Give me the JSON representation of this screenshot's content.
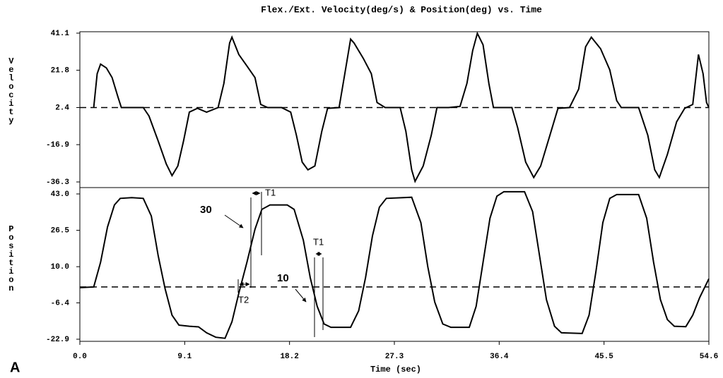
{
  "chart_data": [
    {
      "type": "line",
      "title": "Flex./Ext. Velocity(deg/s) & Position(deg) vs. Time",
      "ylabel": "Velocity",
      "color": "#000000",
      "x": [
        1.2,
        1.5,
        1.8,
        2.3,
        2.8,
        3.3,
        3.6,
        4.5,
        5.5,
        6.0,
        6.8,
        7.5,
        8.0,
        8.5,
        9.0,
        9.5,
        10.2,
        11.0,
        12.0,
        12.5,
        13.0,
        13.2,
        13.8,
        14.5,
        15.2,
        15.7,
        16.3,
        17.5,
        18.3,
        18.8,
        19.3,
        19.8,
        20.4,
        21.0,
        21.5,
        22.5,
        23.0,
        23.5,
        23.8,
        24.6,
        25.3,
        25.8,
        26.5,
        27.8,
        28.3,
        28.8,
        29.1,
        29.8,
        30.5,
        31.0,
        32.0,
        33.0,
        33.6,
        34.1,
        34.5,
        35.0,
        35.5,
        35.9,
        37.5,
        38.0,
        38.7,
        39.4,
        40.0,
        40.8,
        41.5,
        42.5,
        43.3,
        43.9,
        44.4,
        45.2,
        46.0,
        46.6,
        47.0,
        48.5,
        49.3,
        49.9,
        50.3,
        51.0,
        51.8,
        52.5,
        53.2,
        53.7,
        54.1,
        54.4,
        54.6
      ],
      "values": [
        2.4,
        20,
        25,
        23,
        18,
        8,
        2.4,
        2.4,
        2.4,
        -2,
        -15,
        -27,
        -33,
        -28,
        -15,
        0,
        2,
        0,
        2.4,
        15,
        36,
        39,
        30,
        24,
        18,
        4,
        2.4,
        2.4,
        0,
        -12,
        -26,
        -30,
        -28,
        -10,
        2,
        2.4,
        20,
        38,
        36,
        28,
        20,
        5,
        2.4,
        2.4,
        -10,
        -30,
        -36,
        -28,
        -12,
        2.4,
        2.4,
        3,
        15,
        32,
        41,
        35,
        15,
        2.4,
        2.4,
        -8,
        -26,
        -34,
        -28,
        -12,
        2,
        2.4,
        12,
        34,
        39,
        33,
        22,
        6,
        2.4,
        2.4,
        -12,
        -30,
        -34,
        -22,
        -5,
        2,
        4,
        30,
        20,
        5,
        2.4
      ],
      "xlim": [
        0,
        54.6
      ],
      "ylim": [
        -36.3,
        41.1
      ],
      "yticks": [
        41.1,
        21.8,
        2.4,
        -16.9,
        -36.3
      ],
      "ref_line": 2.4
    },
    {
      "type": "line",
      "ylabel": "Position",
      "xlabel": "Time (sec)",
      "panel_label": "A",
      "color": "#000000",
      "x": [
        0,
        1.2,
        1.8,
        2.4,
        3.0,
        3.5,
        4.5,
        5.5,
        6.2,
        6.8,
        7.4,
        8.0,
        8.6,
        9.5,
        10.3,
        11.0,
        11.8,
        12.6,
        13.2,
        13.8,
        14.5,
        15.2,
        15.8,
        16.5,
        18.0,
        18.6,
        19.4,
        20.0,
        20.6,
        21.2,
        21.8,
        23.5,
        24.2,
        24.8,
        25.4,
        26.0,
        26.6,
        28.8,
        29.6,
        30.2,
        30.8,
        31.5,
        32.2,
        33.8,
        34.4,
        35.0,
        35.6,
        36.2,
        36.8,
        38.6,
        39.3,
        39.9,
        40.5,
        41.2,
        41.8,
        43.6,
        44.2,
        44.8,
        45.4,
        46.0,
        46.6,
        48.5,
        49.2,
        49.8,
        50.4,
        51.0,
        51.6,
        52.6,
        53.2,
        53.8,
        54.6
      ],
      "values": [
        0.5,
        0.8,
        12,
        28,
        38,
        41,
        41.3,
        41,
        33,
        15,
        0,
        -12,
        -16.5,
        -17,
        -17.3,
        -20,
        -22,
        -22.5,
        -15,
        -2,
        12,
        27,
        36,
        38,
        38,
        36,
        22,
        5,
        -8,
        -16,
        -17.5,
        -17.5,
        -10,
        5,
        24,
        37,
        41,
        41.5,
        30,
        10,
        -6,
        -16,
        -17.5,
        -17.5,
        -8,
        12,
        32,
        42,
        44,
        44,
        35,
        15,
        -5,
        -17,
        -20,
        -20.3,
        -12,
        8,
        30,
        41,
        42.7,
        42.7,
        32,
        12,
        -5,
        -14,
        -17,
        -17.2,
        -12,
        -4,
        4.5
      ],
      "xlim": [
        0,
        54.6
      ],
      "ylim": [
        -22.9,
        43.0
      ],
      "yticks": [
        {
          "value": 43.0,
          "label": "43.0"
        },
        26.5,
        {
          "value": 10.0,
          "label": "10.0"
        },
        -6.4,
        -22.9
      ],
      "xticks": [
        {
          "value": 0,
          "label": "0.0"
        },
        9.1,
        18.2,
        27.3,
        36.4,
        45.5,
        54.6
      ],
      "ref_line": 0.8,
      "annotations": [
        "30",
        "10",
        "T1",
        "T1",
        "T2"
      ]
    }
  ]
}
